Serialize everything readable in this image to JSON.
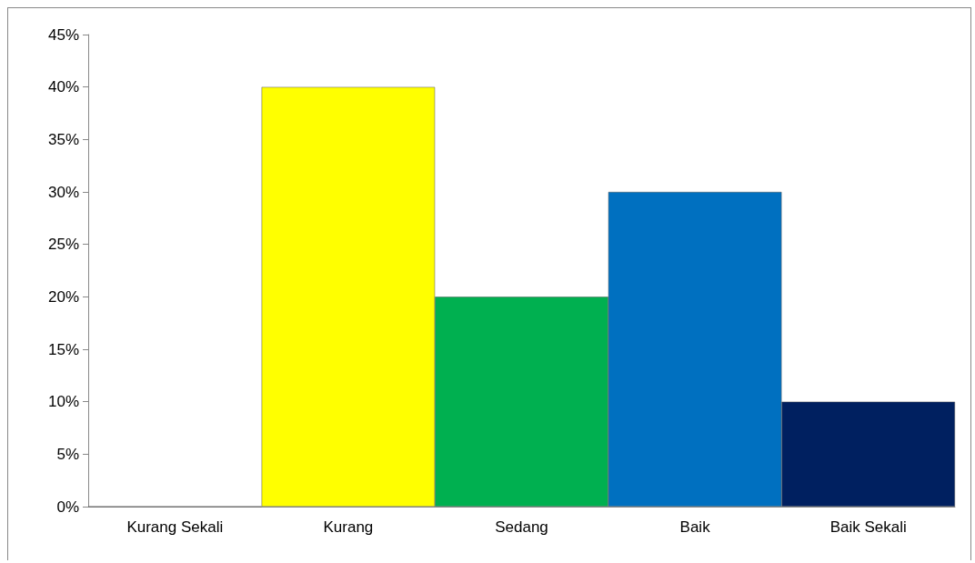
{
  "chart_data": {
    "type": "bar",
    "categories": [
      "Kurang Sekali",
      "Kurang",
      "Sedang",
      "Baik",
      "Baik Sekali"
    ],
    "values": [
      0,
      40,
      20,
      30,
      10
    ],
    "colors": [
      null,
      "#ffff00",
      "#00b050",
      "#0070c0",
      "#002060"
    ],
    "ylim": [
      0,
      45
    ],
    "yticks": [
      {
        "value": 0,
        "label": "0%"
      },
      {
        "value": 5,
        "label": "5%"
      },
      {
        "value": 10,
        "label": "10%"
      },
      {
        "value": 15,
        "label": "15%"
      },
      {
        "value": 20,
        "label": "20%"
      },
      {
        "value": 25,
        "label": "25%"
      },
      {
        "value": 30,
        "label": "30%"
      },
      {
        "value": 35,
        "label": "35%"
      },
      {
        "value": 40,
        "label": "40%"
      },
      {
        "value": 45,
        "label": "45%"
      }
    ],
    "grid": false
  }
}
